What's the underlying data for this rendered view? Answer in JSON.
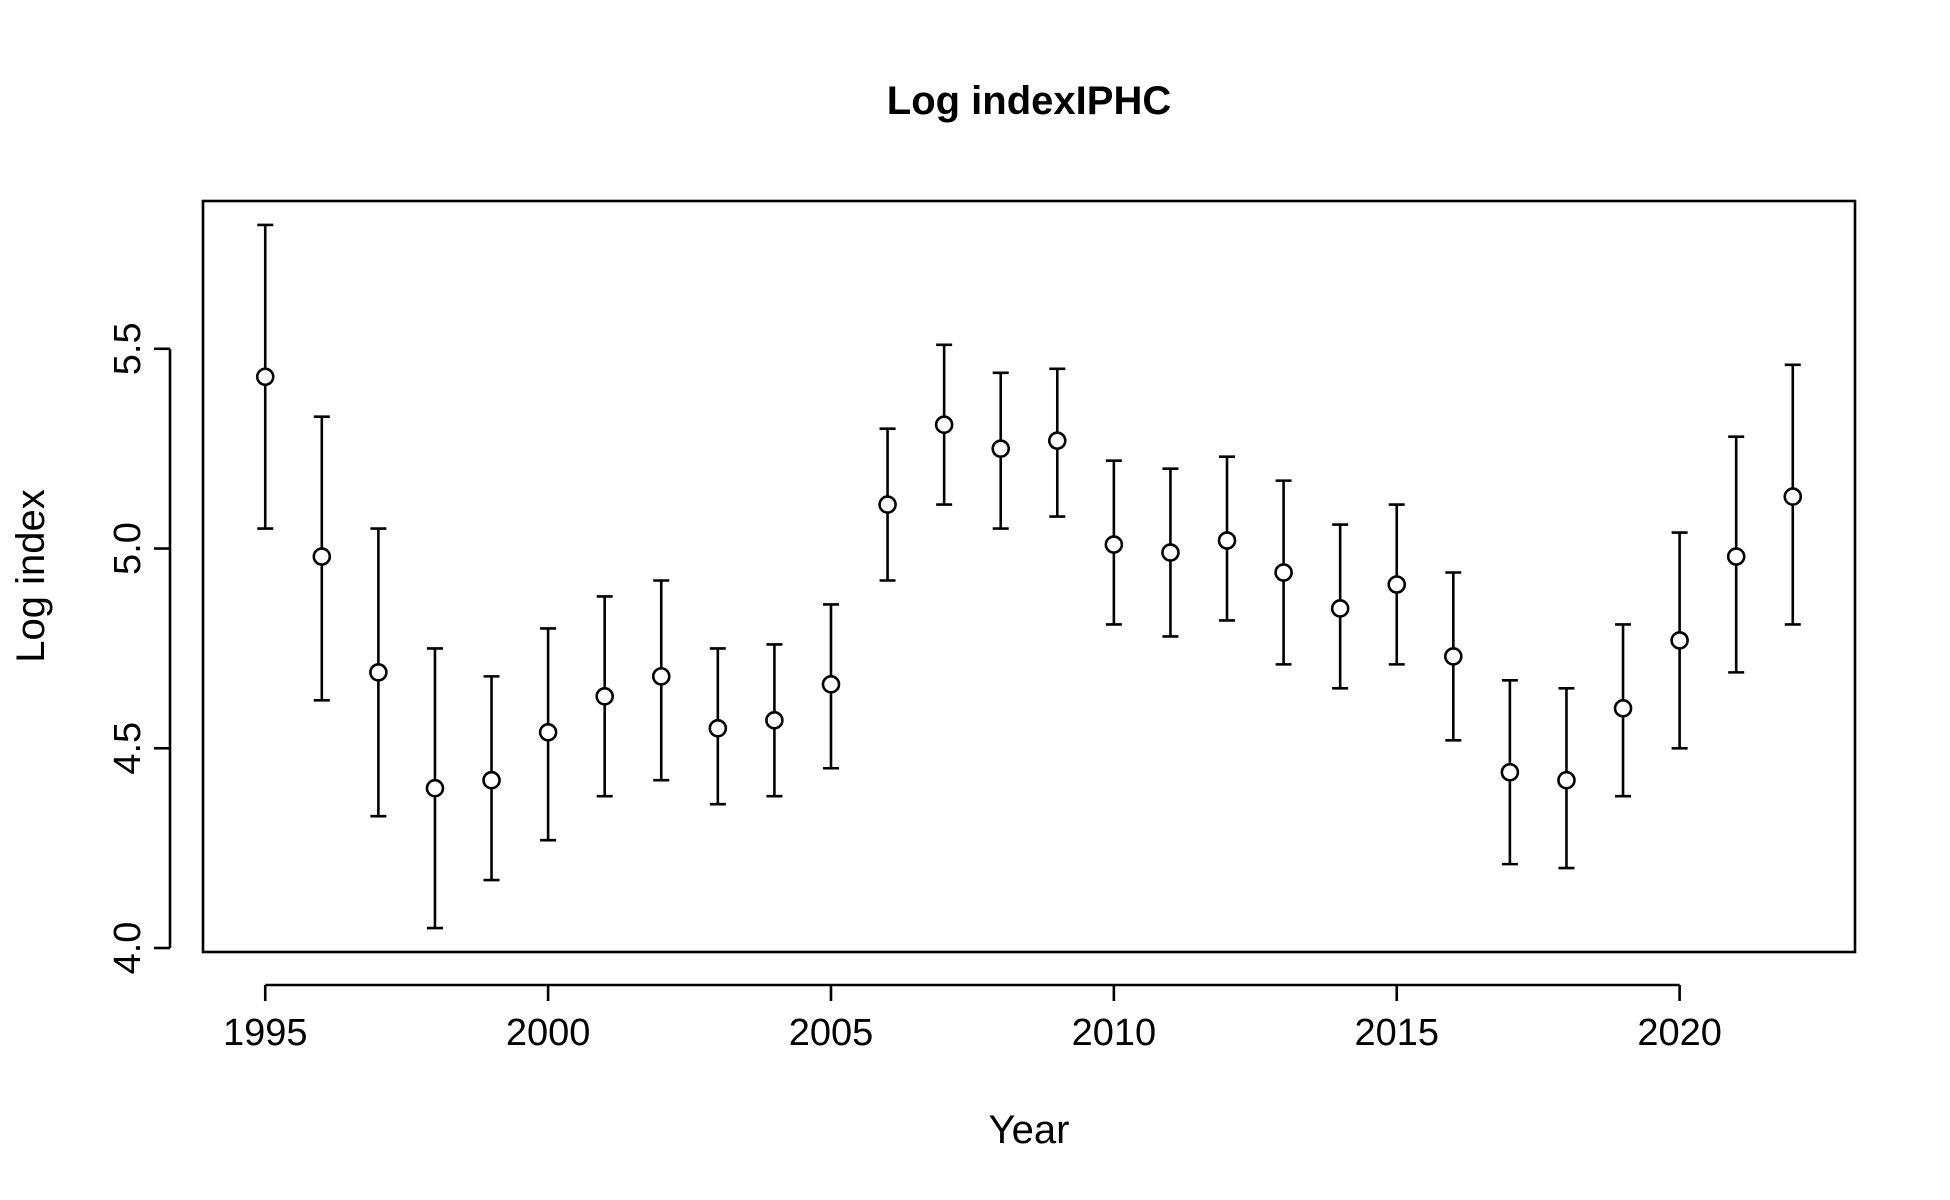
{
  "chart_data": {
    "type": "scatter",
    "title": "Log indexIPHC",
    "xlabel": "Year",
    "ylabel": "Log index",
    "xlim": [
      1993.9,
      2023.1
    ],
    "ylim": [
      3.99,
      5.87
    ],
    "xticks": [
      1995,
      2000,
      2005,
      2010,
      2015,
      2020
    ],
    "yticks": [
      4.0,
      4.5,
      5.0,
      5.5
    ],
    "ytick_labels": [
      "4.0",
      "4.5",
      "5.0",
      "5.5"
    ],
    "grid": false,
    "legend": "none",
    "marker": "open-circle",
    "error_bars": true,
    "series": [
      {
        "x": [
          1995,
          1996,
          1997,
          1998,
          1999,
          2000,
          2001,
          2002,
          2003,
          2004,
          2005,
          2006,
          2007,
          2008,
          2009,
          2010,
          2011,
          2012,
          2013,
          2014,
          2015,
          2016,
          2017,
          2018,
          2019,
          2020,
          2021,
          2022
        ],
        "y": [
          5.43,
          4.98,
          4.69,
          4.4,
          4.42,
          4.54,
          4.63,
          4.68,
          4.55,
          4.57,
          4.66,
          5.11,
          5.31,
          5.25,
          5.27,
          5.01,
          4.99,
          5.02,
          4.94,
          4.85,
          4.91,
          4.73,
          4.44,
          4.42,
          4.6,
          4.77,
          4.98,
          5.13
        ],
        "lower": [
          5.05,
          4.62,
          4.33,
          4.05,
          4.17,
          4.27,
          4.38,
          4.42,
          4.36,
          4.38,
          4.45,
          4.92,
          5.11,
          5.05,
          5.08,
          4.81,
          4.78,
          4.82,
          4.71,
          4.65,
          4.71,
          4.52,
          4.21,
          4.2,
          4.38,
          4.5,
          4.69,
          4.81
        ],
        "upper": [
          5.81,
          5.33,
          5.05,
          4.75,
          4.68,
          4.8,
          4.88,
          4.92,
          4.75,
          4.76,
          4.86,
          5.3,
          5.51,
          5.44,
          5.45,
          5.22,
          5.2,
          5.23,
          5.17,
          5.06,
          5.11,
          4.94,
          4.67,
          4.65,
          4.81,
          5.04,
          5.28,
          5.46
        ]
      }
    ]
  }
}
